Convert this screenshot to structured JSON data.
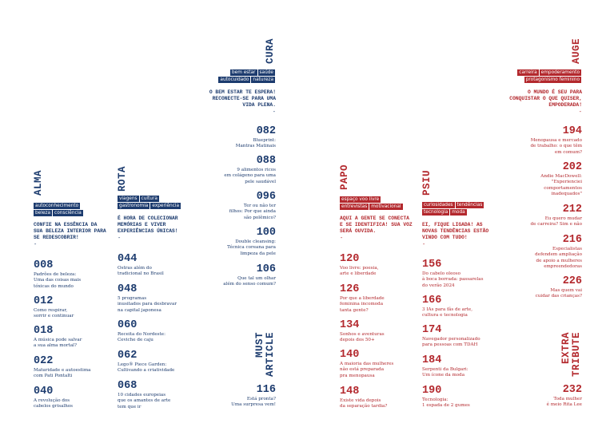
{
  "sections": [
    {
      "title": "ALMA",
      "tags": [
        [
          "autoconhecimento"
        ],
        [
          "beleza",
          "consciência"
        ]
      ],
      "tagline": "CONFIE NA ESSÊNCIA DA\nSUA BELEZA INTERIOR PARA\nSE REDESCOBRIR!",
      "dash": "-",
      "entries": [
        {
          "page": "008",
          "text": "Padrões de beleza:\nUma das coisas mais\ntóxicas do mundo"
        },
        {
          "page": "012",
          "text": "Como respirar,\nsorrir e continuar"
        },
        {
          "page": "018",
          "text": "A música pode salvar\na sua alma mortal?"
        },
        {
          "page": "022",
          "text": "Maturidade e autoestima\ncom Pati Pontalti"
        },
        {
          "page": "040",
          "text": "A revolução dos\ncabelos grisalhos"
        }
      ]
    },
    {
      "title": "ROTA",
      "tags": [
        [
          "viagens",
          "cultura"
        ],
        [
          "gastronomia",
          "experiência"
        ]
      ],
      "tagline": "É HORA DE COLECIONAR\nMEMÓRIAS E VIVER\nEXPERIÊNCIAS ÚNICAS!",
      "dash": "-",
      "entries": [
        {
          "page": "044",
          "text": "Ostras além do\ntradicional no Brasil"
        },
        {
          "page": "048",
          "text": "5 programas\ninusitados para desbravar\nna capital japonesa"
        },
        {
          "page": "060",
          "text": "Receita do Nordeste:\nCeviche de caju"
        },
        {
          "page": "062",
          "text": "Lego® Piece Garden:\nCultivando a criatividade"
        },
        {
          "page": "068",
          "text": "10 cidades europeias\nque os amantes de arte\ntem que ir"
        }
      ]
    },
    {
      "title": "CURA",
      "tags": [
        [
          "bem estar",
          "saúde"
        ],
        [
          "autocuidado",
          "natureza"
        ]
      ],
      "tagline": "O BEM ESTAR TE ESPERA!\nRECONECTE-SE PARA UMA\nVIDA PLENA.",
      "dash": "-",
      "entries": [
        {
          "page": "082",
          "text": "Blueprint:\nMantras Matinais"
        },
        {
          "page": "088",
          "text": "9 alimentos ricos\nem colágeno para uma\npele saudável"
        },
        {
          "page": "096",
          "text": "Ter ou não ter\nfilhos: Por que ainda\nsão polêmico?"
        },
        {
          "page": "100",
          "text": "Double cleansing:\nTécnica coreana para\nlimpeza da pele"
        },
        {
          "page": "106",
          "text": "Que tal um olhar\nalém do senso comum?"
        }
      ]
    },
    {
      "title": "MUST\nARTICLE",
      "entries": [
        {
          "page": "116",
          "text": "Está pronta?\nUma surpresa vem!"
        }
      ]
    },
    {
      "title": "PAPO",
      "tags": [
        [
          "espaço voo livre"
        ],
        [
          "entrevistas",
          "motivacional"
        ]
      ],
      "tagline": "AQUI A GENTE SE CONECTA\nE SE IDENTIFICA! SUA VOZ\nSERÁ OUVIDA.",
      "dash": "-",
      "entries": [
        {
          "page": "120",
          "text": "Voo livre: poesia,\narte e liberdade"
        },
        {
          "page": "126",
          "text": "Por que a liberdade\nfeminina incomoda\ntanta gente?"
        },
        {
          "page": "134",
          "text": "Sonhos e aventuras\ndepois dos 50+"
        },
        {
          "page": "140",
          "text": "A maioria das mulheres\nnão está preparada\npra menopausa"
        },
        {
          "page": "148",
          "text": "Existe vida depois\nda separação tardia?"
        }
      ]
    },
    {
      "title": "PSIU",
      "tags": [
        [
          "curiosidades",
          "tendências"
        ],
        [
          "tecnologia",
          "moda"
        ]
      ],
      "tagline": "EI, FIQUE LIGADA! AS\nNOVAS TENDÊNCIAS ESTÃO\nVINDO COM TUDO!",
      "dash": "-",
      "entries": [
        {
          "page": "156",
          "text": "Do cabelo oleoso\nà boca borrada: passarelas\ndo verão 2024"
        },
        {
          "page": "166",
          "text": "3 IAs para fãs de arte,\ncultura e tecnologia"
        },
        {
          "page": "174",
          "text": "Navegador personalizado\npara pessoas com TDAH"
        },
        {
          "page": "184",
          "text": "Serpenti da Bulgari:\nUm ícone da moda"
        },
        {
          "page": "190",
          "text": "Tecnologia:\n1 espada de 2 gumes"
        }
      ]
    },
    {
      "title": "AUGE",
      "tags": [
        [
          "carreira",
          "empoderamento"
        ],
        [
          "protagonismo feminino"
        ]
      ],
      "tagline": "O MUNDO É SEU PARA\nCONQUISTAR O QUE QUISER,\nEMPODERADA!",
      "dash": "-",
      "entries": [
        {
          "page": "194",
          "text": "Menopausa e mercado\nde trabalho: o que têm\nem comum?"
        },
        {
          "page": "202",
          "text": "Andie MacDowell:\n\"Experienciei\ncomportamentos\ninadequados\""
        },
        {
          "page": "212",
          "text": "Eu quero mudar\nde carreira? Sim e não"
        },
        {
          "page": "216",
          "text": "Especialistas\ndefendem ampliação\nde apoio a mulheres\nempreendedoras"
        },
        {
          "page": "226",
          "text": "Mas quem vai\ncuidar das crianças?"
        }
      ]
    },
    {
      "title": "EXTRA\nTRIBUTE",
      "entries": [
        {
          "page": "232",
          "text": "Toda mulher\né meio Rita Lee"
        }
      ]
    }
  ]
}
